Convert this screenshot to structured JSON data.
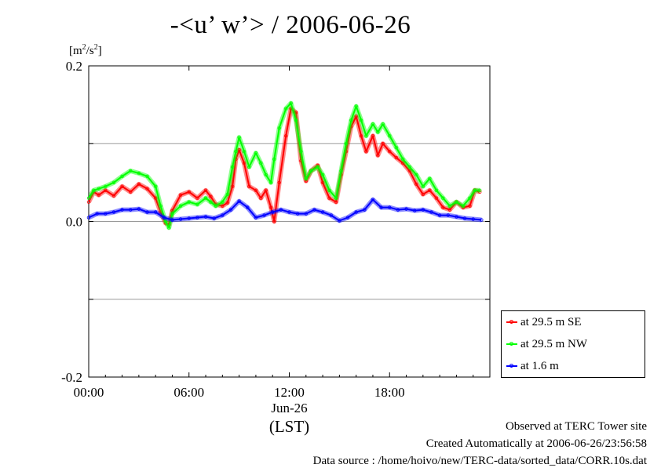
{
  "header": {
    "title": "-<u’ w’> / 2006-06-26",
    "unit_base": "[m",
    "unit_exp1": "2",
    "unit_mid": "/s",
    "unit_exp2": "2",
    "unit_end": "]"
  },
  "footer": {
    "line1": "Observed at TERC Tower site",
    "line2": "Created Automatically at 2006-06-26/23:56:58",
    "line3": "Data source : /home/hoivo/new/TERC-data/sorted_data/CORR.10s.dat"
  },
  "chart_data": {
    "type": "line",
    "title": "-<u’ w’> / 2006-06-26",
    "ylabel": "[m2/s2]",
    "xlabel": "(LST)",
    "x_date_label": "Jun-26",
    "xlim": [
      0,
      24
    ],
    "ylim": [
      -0.2,
      0.2
    ],
    "x_ticks": [
      0,
      6,
      12,
      18
    ],
    "x_tick_labels": [
      "00:00",
      "06:00",
      "12:00",
      "18:00"
    ],
    "y_ticks": [
      -0.2,
      -0.1,
      0.0,
      0.1,
      0.2
    ],
    "y_tick_labels": [
      "-0.2",
      "",
      "0.0",
      "",
      "0.2"
    ],
    "grid": true,
    "legend_position": "bottom-right outside",
    "series": [
      {
        "name": "at 29.5 m SE",
        "color": "#ff0000",
        "x": [
          0.0,
          0.3,
          0.6,
          1.0,
          1.5,
          2.0,
          2.5,
          3.0,
          3.5,
          4.0,
          4.3,
          4.6,
          4.8,
          5.0,
          5.5,
          6.0,
          6.5,
          7.0,
          7.3,
          7.6,
          8.0,
          8.3,
          8.6,
          8.8,
          9.0,
          9.3,
          9.6,
          10.0,
          10.3,
          10.6,
          10.9,
          11.1,
          11.4,
          11.8,
          12.1,
          12.4,
          12.7,
          13.0,
          13.3,
          13.7,
          14.0,
          14.4,
          14.8,
          15.1,
          15.4,
          15.7,
          16.0,
          16.3,
          16.6,
          17.0,
          17.3,
          17.6,
          18.0,
          18.4,
          18.8,
          19.2,
          19.6,
          20.0,
          20.4,
          20.8,
          21.2,
          21.6,
          22.0,
          22.4,
          22.8,
          23.1,
          23.4
        ],
        "y": [
          0.025,
          0.038,
          0.034,
          0.04,
          0.033,
          0.045,
          0.038,
          0.048,
          0.042,
          0.03,
          0.012,
          -0.002,
          -0.004,
          0.014,
          0.034,
          0.038,
          0.03,
          0.04,
          0.032,
          0.022,
          0.02,
          0.024,
          0.045,
          0.08,
          0.092,
          0.075,
          0.045,
          0.04,
          0.03,
          0.04,
          0.018,
          0.0,
          0.05,
          0.11,
          0.145,
          0.14,
          0.078,
          0.052,
          0.065,
          0.072,
          0.05,
          0.03,
          0.025,
          0.06,
          0.09,
          0.122,
          0.135,
          0.11,
          0.09,
          0.11,
          0.085,
          0.1,
          0.09,
          0.082,
          0.075,
          0.065,
          0.048,
          0.035,
          0.04,
          0.03,
          0.018,
          0.015,
          0.025,
          0.018,
          0.02,
          0.04,
          0.038
        ]
      },
      {
        "name": "at 29.5 m NW",
        "color": "#00ff00",
        "x": [
          0.0,
          0.3,
          0.6,
          1.0,
          1.5,
          2.0,
          2.5,
          3.0,
          3.5,
          4.0,
          4.3,
          4.6,
          4.8,
          5.0,
          5.5,
          6.0,
          6.5,
          7.0,
          7.3,
          7.6,
          8.0,
          8.3,
          8.6,
          8.8,
          9.0,
          9.3,
          9.6,
          10.0,
          10.3,
          10.6,
          10.9,
          11.1,
          11.4,
          11.8,
          12.1,
          12.4,
          12.7,
          13.0,
          13.3,
          13.7,
          14.0,
          14.4,
          14.8,
          15.1,
          15.4,
          15.7,
          16.0,
          16.3,
          16.6,
          17.0,
          17.3,
          17.6,
          18.0,
          18.4,
          18.8,
          19.2,
          19.6,
          20.0,
          20.4,
          20.8,
          21.2,
          21.6,
          22.0,
          22.4,
          22.8,
          23.1,
          23.4
        ],
        "y": [
          0.03,
          0.04,
          0.042,
          0.045,
          0.05,
          0.058,
          0.065,
          0.062,
          0.058,
          0.045,
          0.02,
          0.0,
          -0.008,
          0.01,
          0.02,
          0.025,
          0.022,
          0.03,
          0.025,
          0.02,
          0.025,
          0.035,
          0.07,
          0.09,
          0.108,
          0.09,
          0.07,
          0.088,
          0.075,
          0.06,
          0.05,
          0.08,
          0.12,
          0.145,
          0.152,
          0.13,
          0.09,
          0.055,
          0.065,
          0.07,
          0.06,
          0.04,
          0.03,
          0.065,
          0.1,
          0.13,
          0.148,
          0.13,
          0.11,
          0.125,
          0.115,
          0.125,
          0.11,
          0.095,
          0.08,
          0.07,
          0.06,
          0.045,
          0.055,
          0.04,
          0.03,
          0.02,
          0.025,
          0.02,
          0.03,
          0.04,
          0.04
        ]
      },
      {
        "name": "at 1.6 m",
        "color": "#0000ff",
        "x": [
          0.0,
          0.5,
          1.0,
          1.5,
          2.0,
          2.5,
          3.0,
          3.5,
          4.0,
          4.5,
          5.0,
          5.5,
          6.0,
          6.5,
          7.0,
          7.5,
          8.0,
          8.5,
          9.0,
          9.5,
          10.0,
          10.5,
          11.0,
          11.5,
          12.0,
          12.5,
          13.0,
          13.5,
          14.0,
          14.5,
          15.0,
          15.5,
          16.0,
          16.5,
          17.0,
          17.5,
          18.0,
          18.5,
          19.0,
          19.5,
          20.0,
          20.5,
          21.0,
          21.5,
          22.0,
          22.5,
          23.0,
          23.5
        ],
        "y": [
          0.005,
          0.01,
          0.01,
          0.012,
          0.015,
          0.015,
          0.016,
          0.012,
          0.012,
          0.005,
          0.002,
          0.003,
          0.004,
          0.005,
          0.006,
          0.004,
          0.008,
          0.015,
          0.026,
          0.018,
          0.005,
          0.008,
          0.012,
          0.015,
          0.012,
          0.01,
          0.01,
          0.015,
          0.012,
          0.008,
          0.001,
          0.005,
          0.012,
          0.015,
          0.028,
          0.018,
          0.018,
          0.015,
          0.016,
          0.014,
          0.015,
          0.012,
          0.008,
          0.008,
          0.006,
          0.004,
          0.003,
          0.002
        ]
      }
    ]
  }
}
